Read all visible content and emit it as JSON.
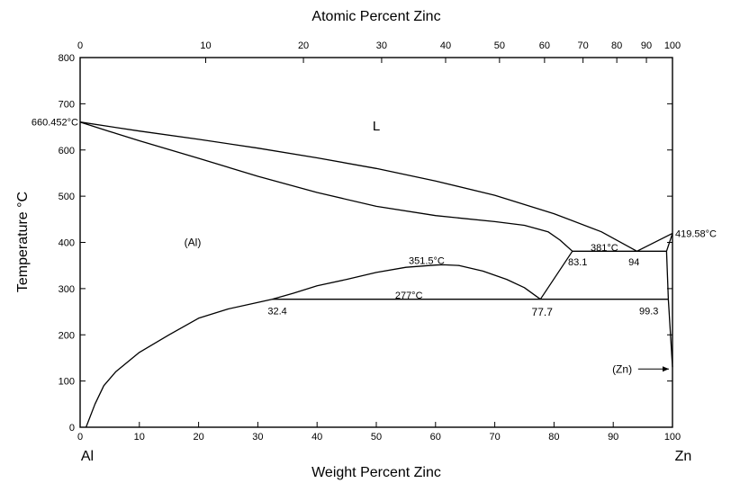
{
  "chart_data": {
    "type": "line",
    "title": "",
    "top_axis_title": "Atomic Percent Zinc",
    "bottom_axis_title": "Weight Percent Zinc",
    "ylabel": "Temperature °C",
    "xlim": [
      0,
      100
    ],
    "ylim": [
      0,
      800
    ],
    "bottom_ticks": [
      "0",
      "10",
      "20",
      "30",
      "40",
      "50",
      "60",
      "70",
      "80",
      "90",
      "100"
    ],
    "y_ticks": [
      "0",
      "100",
      "200",
      "300",
      "400",
      "500",
      "600",
      "700",
      "800"
    ],
    "top_ticks": [
      {
        "label": "0",
        "at_wt": 0
      },
      {
        "label": "10",
        "at_wt": 21.2
      },
      {
        "label": "20",
        "at_wt": 37.7
      },
      {
        "label": "30",
        "at_wt": 50.9
      },
      {
        "label": "40",
        "at_wt": 61.7
      },
      {
        "label": "50",
        "at_wt": 70.8
      },
      {
        "label": "60",
        "at_wt": 78.4
      },
      {
        "label": "70",
        "at_wt": 84.9
      },
      {
        "label": "80",
        "at_wt": 90.6
      },
      {
        "label": "90",
        "at_wt": 95.6
      },
      {
        "label": "100",
        "at_wt": 100
      }
    ],
    "left_element": "Al",
    "right_element": "Zn",
    "series": [
      {
        "id": "liquidus",
        "points": [
          [
            0,
            660.452
          ],
          [
            10,
            641
          ],
          [
            20,
            623
          ],
          [
            30,
            604
          ],
          [
            40,
            583
          ],
          [
            50,
            560
          ],
          [
            60,
            533
          ],
          [
            70,
            502
          ],
          [
            80,
            462
          ],
          [
            88,
            423
          ],
          [
            94,
            381
          ]
        ]
      },
      {
        "id": "solidus",
        "points": [
          [
            0,
            660.452
          ],
          [
            5,
            640
          ],
          [
            10,
            620
          ],
          [
            20,
            582
          ],
          [
            30,
            543
          ],
          [
            40,
            508
          ],
          [
            50,
            478
          ],
          [
            60,
            458
          ],
          [
            70,
            445
          ],
          [
            75,
            437
          ],
          [
            79,
            423
          ],
          [
            81,
            405
          ],
          [
            83.1,
            381
          ]
        ]
      },
      {
        "id": "al-solvus",
        "points": [
          [
            1,
            0
          ],
          [
            2.5,
            50
          ],
          [
            4,
            90
          ],
          [
            6,
            120
          ],
          [
            10,
            162
          ],
          [
            15,
            200
          ],
          [
            20,
            236
          ],
          [
            25,
            256
          ],
          [
            30,
            270
          ],
          [
            32.4,
            277
          ]
        ]
      },
      {
        "id": "miscibility-gap",
        "points": [
          [
            32.4,
            277
          ],
          [
            36,
            290
          ],
          [
            40,
            306
          ],
          [
            45,
            320
          ],
          [
            50,
            335
          ],
          [
            55,
            346
          ],
          [
            60,
            351
          ],
          [
            61.3,
            351.5
          ],
          [
            64,
            350
          ],
          [
            68,
            338
          ],
          [
            72,
            320
          ],
          [
            75,
            302
          ],
          [
            77.7,
            277
          ]
        ]
      },
      {
        "id": "eutectoid-line",
        "points": [
          [
            32.4,
            277
          ],
          [
            99.3,
            277
          ]
        ]
      },
      {
        "id": "monotectoid-right",
        "points": [
          [
            77.7,
            277
          ],
          [
            83.1,
            381
          ]
        ]
      },
      {
        "id": "eutectic-line",
        "points": [
          [
            83.1,
            381
          ],
          [
            99,
            381
          ]
        ]
      },
      {
        "id": "zn-liquidus",
        "points": [
          [
            94,
            381
          ],
          [
            100,
            419.58
          ]
        ]
      },
      {
        "id": "zn-solidus",
        "points": [
          [
            99,
            381
          ],
          [
            100,
            419.58
          ]
        ]
      },
      {
        "id": "zn-solvus-upper",
        "points": [
          [
            99,
            381
          ],
          [
            99.3,
            277
          ]
        ]
      },
      {
        "id": "zn-solvus-lower",
        "points": [
          [
            99.3,
            277
          ],
          [
            100,
            130
          ]
        ]
      }
    ],
    "annotations": [
      {
        "text": "660.452°C",
        "x": 0,
        "y": 660.452,
        "anchor": "end"
      },
      {
        "text": "419.58°C",
        "x": 100,
        "y": 419.58,
        "anchor": "start"
      },
      {
        "text": "L",
        "x": 50,
        "y": 650,
        "anchor": "middle",
        "style": "big"
      },
      {
        "text": "(Al)",
        "x": 19,
        "y": 400,
        "anchor": "middle",
        "style": "phase"
      },
      {
        "text": "351.5°C",
        "x": 58.5,
        "y": 361,
        "anchor": "middle"
      },
      {
        "text": "277°C",
        "x": 55.5,
        "y": 286,
        "anchor": "middle"
      },
      {
        "text": "381°C",
        "x": 88.5,
        "y": 389,
        "anchor": "middle"
      },
      {
        "text": "83.1",
        "x": 84,
        "y": 358,
        "anchor": "middle"
      },
      {
        "text": "94",
        "x": 93.5,
        "y": 358,
        "anchor": "middle"
      },
      {
        "text": "32.4",
        "x": 33.3,
        "y": 252,
        "anchor": "middle"
      },
      {
        "text": "77.7",
        "x": 78,
        "y": 249,
        "anchor": "middle",
        "style": "phase"
      },
      {
        "text": "99.3",
        "x": 96,
        "y": 252,
        "anchor": "middle"
      },
      {
        "text": "(Zn)",
        "x": 91.5,
        "y": 126,
        "anchor": "middle",
        "style": "phase"
      }
    ],
    "grid": false
  }
}
